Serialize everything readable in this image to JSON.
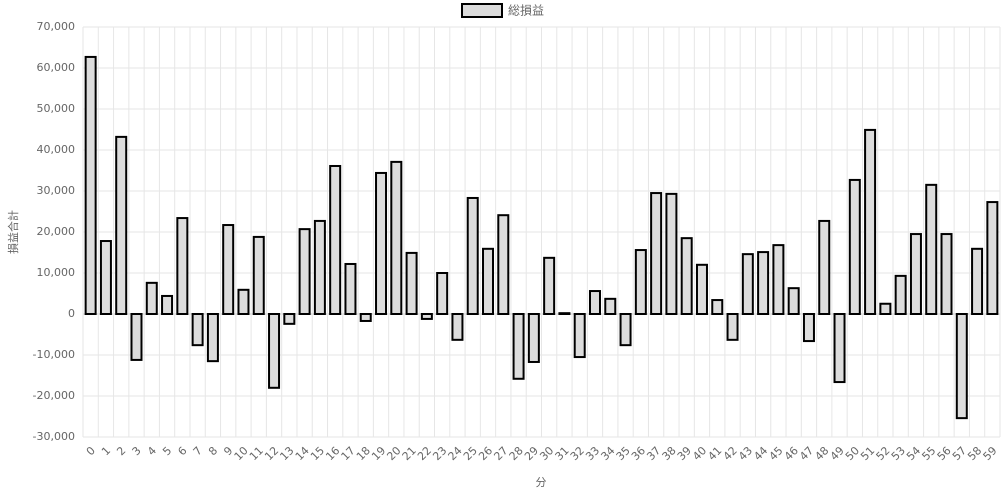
{
  "chart_data": {
    "type": "bar",
    "x_label": "分",
    "y_label": "損益合計",
    "categories": [
      "0",
      "1",
      "2",
      "3",
      "4",
      "5",
      "6",
      "7",
      "8",
      "9",
      "10",
      "11",
      "12",
      "13",
      "14",
      "15",
      "16",
      "17",
      "18",
      "19",
      "20",
      "21",
      "22",
      "23",
      "24",
      "25",
      "26",
      "27",
      "28",
      "29",
      "30",
      "31",
      "32",
      "33",
      "34",
      "35",
      "36",
      "37",
      "38",
      "39",
      "40",
      "41",
      "42",
      "43",
      "44",
      "45",
      "46",
      "47",
      "48",
      "49",
      "50",
      "51",
      "52",
      "53",
      "54",
      "55",
      "56",
      "57",
      "58",
      "59"
    ],
    "series": [
      {
        "name": "総損益",
        "color": "#dcdcdc",
        "border_color": "#000000",
        "values": [
          62700,
          17800,
          43200,
          -11200,
          7600,
          4400,
          23400,
          -7600,
          -11500,
          21700,
          5900,
          18800,
          -18000,
          -2400,
          20700,
          22700,
          36100,
          12200,
          -1700,
          34400,
          37100,
          14900,
          -1200,
          10000,
          -6300,
          28300,
          15900,
          24100,
          -15800,
          -11700,
          13700,
          200,
          -10500,
          5600,
          3700,
          -7600,
          15600,
          29500,
          29300,
          18500,
          12000,
          3400,
          -6300,
          14600,
          15100,
          16800,
          6300,
          -6600,
          22700,
          -16600,
          32700,
          44900,
          2500,
          9300,
          19500,
          31500,
          19500,
          -25400,
          15900,
          27300
        ]
      }
    ],
    "ylim": [
      -30000,
      70000
    ],
    "yticks": [
      {
        "value": -30000,
        "label": "-30,000"
      },
      {
        "value": -20000,
        "label": "-20,000"
      },
      {
        "value": -10000,
        "label": "-10,000"
      },
      0,
      {
        "value": 10000,
        "label": "10,000"
      },
      {
        "value": 20000,
        "label": "20,000"
      },
      {
        "value": 30000,
        "label": "30,000"
      },
      {
        "value": 40000,
        "label": "40,000"
      },
      {
        "value": 50000,
        "label": "50,000"
      },
      {
        "value": 60000,
        "label": "60,000"
      },
      {
        "value": 70000,
        "label": "70,000"
      }
    ],
    "grid": true,
    "legend": "top"
  }
}
